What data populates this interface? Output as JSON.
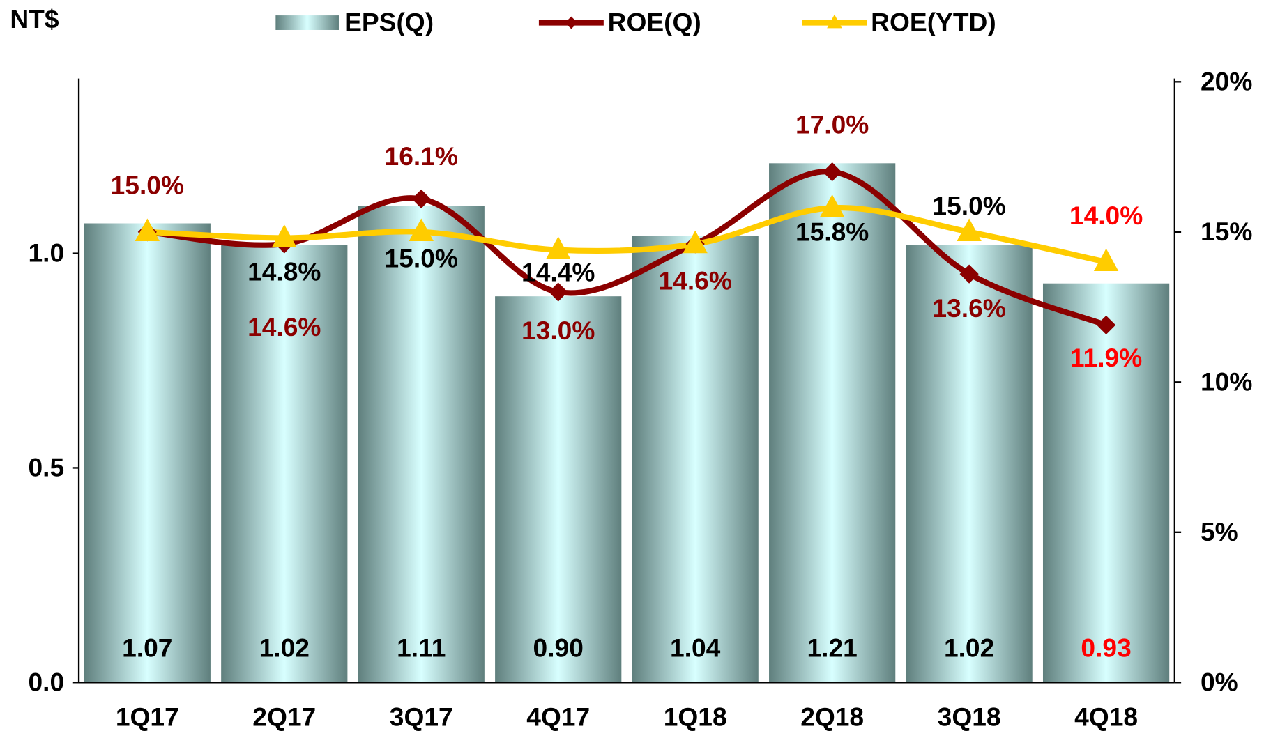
{
  "chart_data": {
    "type": "bar",
    "y_axis_title": "NT$",
    "categories": [
      "1Q17",
      "2Q17",
      "3Q17",
      "4Q17",
      "1Q18",
      "2Q18",
      "3Q18",
      "4Q18"
    ],
    "ylim": [
      0,
      1.4
    ],
    "yticks": [
      {
        "value": 0,
        "label": "0.0"
      },
      {
        "value": 0.5,
        "label": "0.5"
      },
      {
        "value": 1,
        "label": "1.0"
      }
    ],
    "y2lim": [
      0,
      20
    ],
    "y2ticks": [
      {
        "value": 0,
        "label": "0%"
      },
      {
        "value": 5,
        "label": "5%"
      },
      {
        "value": 10,
        "label": "10%"
      },
      {
        "value": 15,
        "label": "15%"
      },
      {
        "value": 20,
        "label": "20%"
      }
    ],
    "series": [
      {
        "name": "EPS(Q)",
        "type": "bar",
        "color": "#5f7f7d",
        "highlight_color": "#d8ffff",
        "values": [
          1.07,
          1.02,
          1.11,
          0.9,
          1.04,
          1.21,
          1.02,
          0.93
        ],
        "value_labels": [
          "1.07",
          "1.02",
          "1.11",
          "0.90",
          "1.04",
          "1.21",
          "1.02",
          "0.93"
        ],
        "value_label_colors": [
          "#000",
          "#000",
          "#000",
          "#000",
          "#000",
          "#000",
          "#000",
          "#ff0000"
        ]
      },
      {
        "name": "ROE(Q)",
        "type": "line",
        "axis": "y2",
        "color": "#8b0000",
        "marker": "diamond",
        "values": [
          15.0,
          14.6,
          16.1,
          13.0,
          14.6,
          17.0,
          13.6,
          11.9
        ],
        "value_labels": [
          "15.0%",
          "14.6%",
          "16.1%",
          "13.0%",
          "14.6%",
          "17.0%",
          "13.6%",
          "11.9%"
        ],
        "value_label_colors": [
          "#8b0000",
          "#8b0000",
          "#8b0000",
          "#8b0000",
          "#8b0000",
          "#8b0000",
          "#8b0000",
          "#ff0000"
        ]
      },
      {
        "name": "ROE(YTD)",
        "type": "line",
        "axis": "y2",
        "color": "#ffcc00",
        "marker": "triangle",
        "values": [
          15.0,
          14.8,
          15.0,
          14.4,
          14.6,
          15.8,
          15.0,
          14.0
        ],
        "value_labels": [
          null,
          "14.8%",
          "15.0%",
          "14.4%",
          null,
          "15.8%",
          "15.0%",
          "14.0%"
        ],
        "value_label_colors": [
          "#000",
          "#000",
          "#000",
          "#000",
          "#000",
          "#000",
          "#000",
          "#ff0000"
        ]
      }
    ]
  }
}
